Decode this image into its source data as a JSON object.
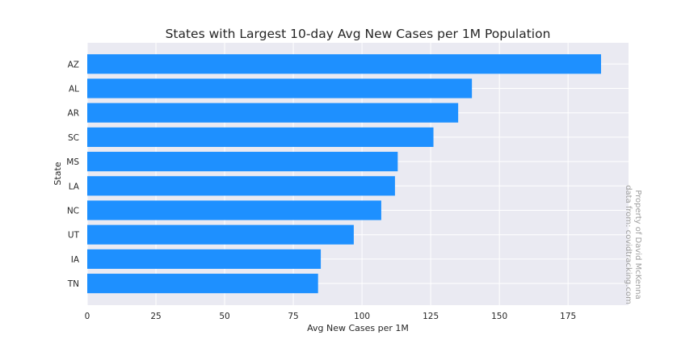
{
  "chart_data": {
    "type": "bar",
    "orientation": "horizontal",
    "title": "States with Largest 10-day Avg New Cases per 1M Population",
    "xlabel": "Avg New Cases per 1M",
    "ylabel": "State",
    "categories": [
      "AZ",
      "AL",
      "AR",
      "SC",
      "MS",
      "LA",
      "NC",
      "UT",
      "IA",
      "TN"
    ],
    "values": [
      187,
      140,
      135,
      126,
      113,
      112,
      107,
      97,
      85,
      84
    ],
    "xlim": [
      0,
      197
    ],
    "xticks": [
      0,
      25,
      50,
      75,
      100,
      125,
      150,
      175
    ],
    "grid": true,
    "bar_color": "#1e90ff",
    "plot_background": "#eaeaf2",
    "watermark": [
      "Property of David McKenna",
      "data from: covidtracking.com"
    ]
  }
}
